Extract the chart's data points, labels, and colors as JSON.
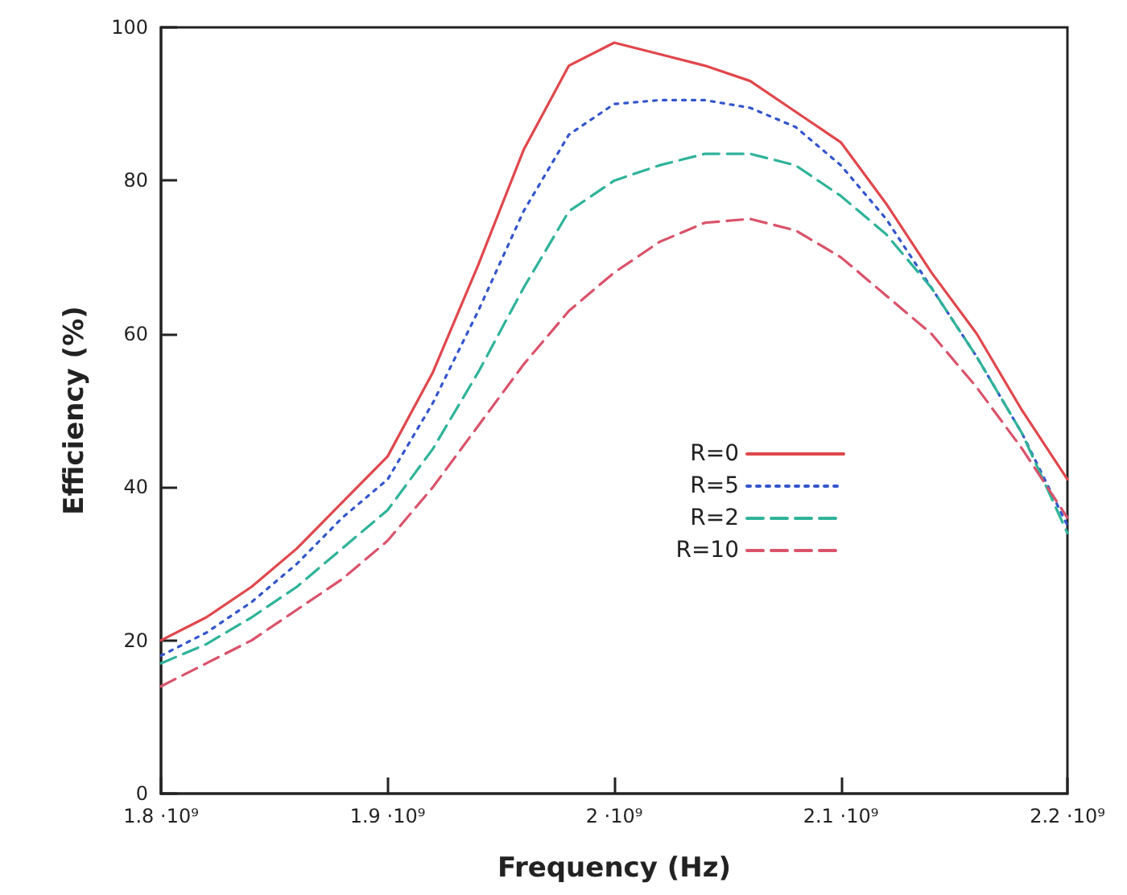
{
  "chart_data": {
    "type": "line",
    "xlabel": "Frequency (Hz)",
    "ylabel": "Efficiency (%)",
    "x": [
      1800000000.0,
      1820000000.0,
      1840000000.0,
      1860000000.0,
      1880000000.0,
      1900000000.0,
      1920000000.0,
      1940000000.0,
      1960000000.0,
      1980000000.0,
      2000000000.0,
      2020000000.0,
      2040000000.0,
      2060000000.0,
      2080000000.0,
      2100000000.0,
      2120000000.0,
      2140000000.0,
      2160000000.0,
      2180000000.0,
      2200000000.0
    ],
    "series": [
      {
        "name": "R=0",
        "color": "#e0474c",
        "line_style": "solid",
        "values": [
          20,
          23,
          27,
          32,
          38,
          44,
          55,
          69,
          84,
          95,
          98,
          96.5,
          95,
          93,
          89,
          85,
          77,
          68,
          60,
          50,
          41
        ]
      },
      {
        "name": "R=5",
        "color": "#3355cc",
        "line_style": "dotted",
        "values": [
          18,
          21,
          25,
          30,
          36,
          41,
          51,
          63,
          76,
          86,
          90,
          90.5,
          90.5,
          89.5,
          87,
          82,
          75,
          66,
          57,
          47,
          35
        ]
      },
      {
        "name": "R=2",
        "color": "#2fb39a",
        "line_style": "dashed",
        "values": [
          17,
          19.5,
          23,
          27,
          32,
          37,
          45,
          55,
          66,
          76,
          80,
          82,
          83.5,
          83.5,
          82,
          78,
          73,
          66,
          57,
          47,
          34
        ]
      },
      {
        "name": "R=10",
        "color": "#d9536a",
        "line_style": "dashed",
        "values": [
          14,
          17,
          20,
          24,
          28,
          33,
          40,
          48,
          56,
          63,
          68,
          72,
          74.5,
          75,
          73.5,
          70,
          65,
          60,
          53,
          45,
          36
        ]
      }
    ],
    "xlim": [
      1800000000.0,
      2200000000.0
    ],
    "xticks": [
      {
        "value": 1800000000.0,
        "label": "1.8 ·10⁹"
      },
      {
        "value": 1900000000.0,
        "label": "1.9 ·10⁹"
      },
      {
        "value": 2000000000.0,
        "label": "2 ·10⁹"
      },
      {
        "value": 2100000000.0,
        "label": "2.1 ·10⁹"
      },
      {
        "value": 2200000000.0,
        "label": "2.2 ·10⁹"
      }
    ],
    "ylim": [
      0,
      100
    ],
    "yticks": [
      0,
      20,
      40,
      60,
      80,
      100
    ],
    "grid": false,
    "legend": "center",
    "marker": "none"
  }
}
